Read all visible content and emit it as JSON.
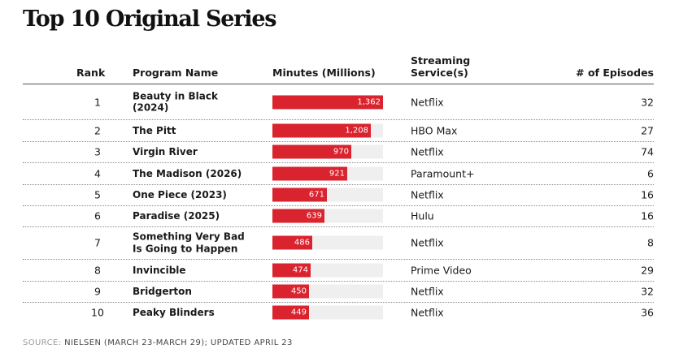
{
  "title": "Top 10 Original Series",
  "columns": {
    "rank": "Rank",
    "program": "Program Name",
    "minutes": "Minutes (Millions)",
    "service_line1": "Streaming",
    "service_line2": "Service(s)",
    "episodes": "# of Episodes"
  },
  "source": {
    "label": "SOURCE:",
    "text": "NIELSEN (MARCH 23-MARCH 29); UPDATED APRIL 23"
  },
  "colors": {
    "bar": "#d9232e",
    "track": "#efefef"
  },
  "chart_data": {
    "type": "table",
    "title": "Top 10 Original Series",
    "value_axis": "Minutes (Millions)",
    "max_minutes": 1362,
    "rows": [
      {
        "rank": "1",
        "name_lines": [
          "Beauty in Black",
          "(2024)"
        ],
        "minutes": 1362,
        "minutes_label": "1,362",
        "service": "Netflix",
        "episodes": "32"
      },
      {
        "rank": "2",
        "name_lines": [
          "The Pitt"
        ],
        "minutes": 1208,
        "minutes_label": "1,208",
        "service": "HBO Max",
        "episodes": "27"
      },
      {
        "rank": "3",
        "name_lines": [
          "Virgin River"
        ],
        "minutes": 970,
        "minutes_label": "970",
        "service": "Netflix",
        "episodes": "74"
      },
      {
        "rank": "4",
        "name_lines": [
          "The Madison (2026)"
        ],
        "minutes": 921,
        "minutes_label": "921",
        "service": "Paramount+",
        "episodes": "6"
      },
      {
        "rank": "5",
        "name_lines": [
          "One Piece (2023)"
        ],
        "minutes": 671,
        "minutes_label": "671",
        "service": "Netflix",
        "episodes": "16"
      },
      {
        "rank": "6",
        "name_lines": [
          "Paradise (2025)"
        ],
        "minutes": 639,
        "minutes_label": "639",
        "service": "Hulu",
        "episodes": "16"
      },
      {
        "rank": "7",
        "name_lines": [
          "Something Very Bad",
          "Is Going to Happen"
        ],
        "minutes": 486,
        "minutes_label": "486",
        "service": "Netflix",
        "episodes": "8"
      },
      {
        "rank": "8",
        "name_lines": [
          "Invincible"
        ],
        "minutes": 474,
        "minutes_label": "474",
        "service": "Prime Video",
        "episodes": "29"
      },
      {
        "rank": "9",
        "name_lines": [
          "Bridgerton"
        ],
        "minutes": 450,
        "minutes_label": "450",
        "service": "Netflix",
        "episodes": "32"
      },
      {
        "rank": "10",
        "name_lines": [
          "Peaky Blinders"
        ],
        "minutes": 449,
        "minutes_label": "449",
        "service": "Netflix",
        "episodes": "36"
      }
    ]
  }
}
